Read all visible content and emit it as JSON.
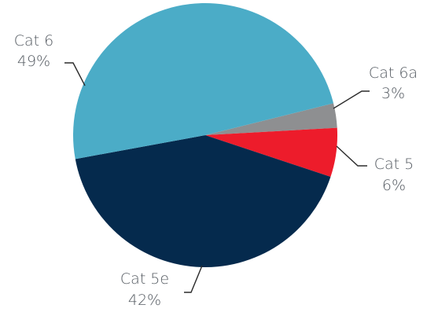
{
  "chart_data": {
    "type": "pie",
    "title": "",
    "slices": [
      {
        "label": "Cat 6a",
        "value": 3,
        "display": "3%",
        "color": "#8e8f91"
      },
      {
        "label": "Cat 5",
        "value": 6,
        "display": "6%",
        "color": "#ed1c2b"
      },
      {
        "label": "Cat 5e",
        "value": 42,
        "display": "42%",
        "color": "#052a4d"
      },
      {
        "label": "Cat 6",
        "value": 49,
        "display": "49%",
        "color": "#4bacc7"
      }
    ],
    "legend": "none"
  }
}
